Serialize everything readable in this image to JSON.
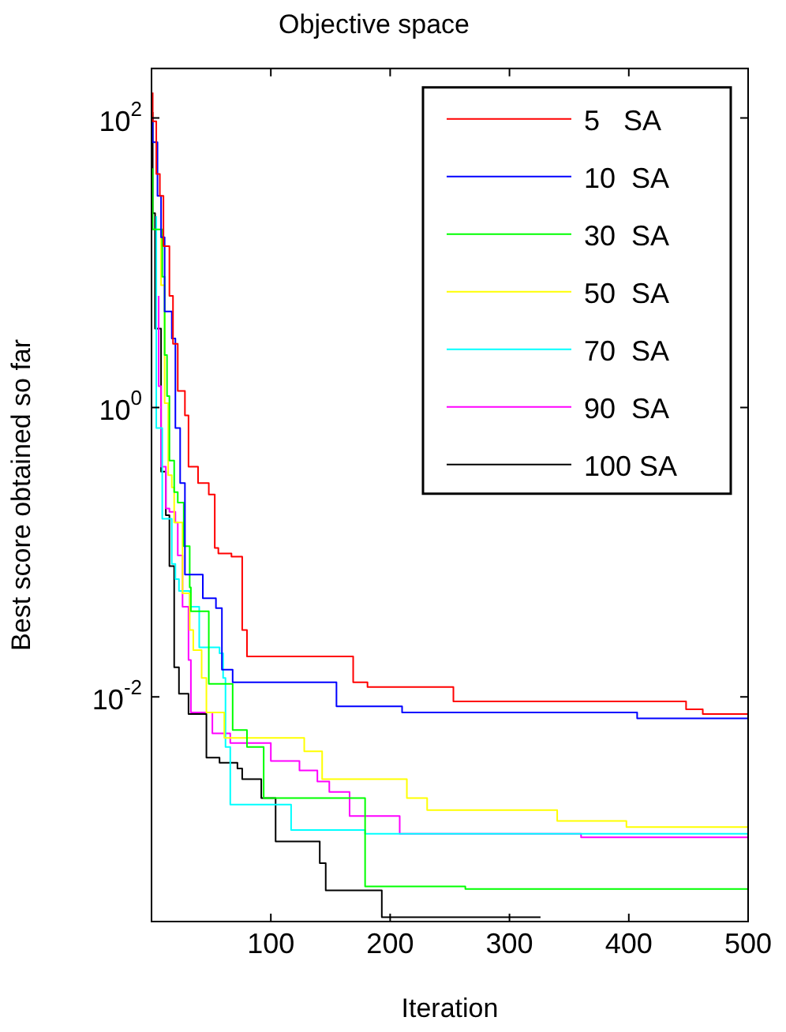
{
  "chart_data": {
    "type": "step",
    "title": "Objective space",
    "xlabel": "Iteration",
    "ylabel": "Best score obtained so far",
    "log": "y",
    "legend": "top right",
    "xlim": [
      0,
      500
    ],
    "xticks": [
      100,
      200,
      300,
      400,
      500
    ],
    "ylim": [
      0.00028,
      220
    ],
    "yticks": [
      {
        "value": 0.01,
        "label": "10$^{-2}$"
      },
      {
        "value": 1,
        "label": "10$^{0}$"
      },
      {
        "value": 100,
        "label": "10$^{2}$"
      }
    ],
    "series": [
      {
        "name": "5   SA",
        "color": "#ff0000",
        "x": [
          1,
          4,
          7,
          10,
          15,
          18,
          22,
          28,
          31,
          39,
          48,
          53,
          56,
          67,
          76,
          80,
          169,
          181,
          253,
          448,
          462,
          495,
          500
        ],
        "values": [
          150,
          95,
          41,
          29,
          13,
          5.9,
          2.75,
          1.3,
          0.88,
          0.39,
          0.3,
          0.25,
          0.107,
          0.098,
          0.093,
          0.029,
          0.019,
          0.0126,
          0.0117,
          0.0093,
          0.0082,
          0.0076,
          0.0076
        ]
      },
      {
        "name": "10  SA",
        "color": "#0000ff",
        "x": [
          1,
          5,
          8,
          11,
          17,
          20,
          24,
          28,
          43,
          54,
          59,
          68,
          155,
          210,
          407,
          471,
          500
        ],
        "values": [
          100,
          68,
          29,
          15,
          4.6,
          3,
          0.72,
          0.3,
          0.07,
          0.048,
          0.041,
          0.0154,
          0.0126,
          0.0086,
          0.0078,
          0.0071,
          0.0071
        ]
      },
      {
        "name": "30  SA",
        "color": "#00ff00",
        "x": [
          1,
          9,
          11,
          13,
          15,
          19,
          22,
          27,
          32,
          33,
          48,
          68,
          80,
          94,
          179,
          263,
          479,
          500
        ],
        "values": [
          45,
          17,
          8,
          2.3,
          1.2,
          0.43,
          0.26,
          0.22,
          0.11,
          0.057,
          0.039,
          0.0123,
          0.0059,
          0.0045,
          0.002,
          0.00049,
          0.00047,
          0.00047
        ]
      },
      {
        "name": "50  SA",
        "color": "#ffff00",
        "x": [
          8,
          11,
          14,
          17,
          19,
          26,
          32,
          35,
          42,
          46,
          61,
          128,
          143,
          214,
          231,
          340,
          398,
          441,
          500
        ],
        "values": [
          16,
          7,
          1.07,
          0.34,
          0.28,
          0.16,
          0.052,
          0.029,
          0.021,
          0.0135,
          0.0078,
          0.0052,
          0.0042,
          0.0027,
          0.002,
          0.00165,
          0.00139,
          0.00126,
          0.00126
        ]
      },
      {
        "name": "70  SA",
        "color": "#00ffff",
        "x": [
          4,
          9,
          17,
          20,
          23,
          32,
          40,
          57,
          60,
          62,
          66,
          117,
          179,
          444,
          500
        ],
        "values": [
          21,
          0.72,
          0.17,
          0.083,
          0.065,
          0.054,
          0.042,
          0.022,
          0.02,
          0.0135,
          0.0045,
          0.0018,
          0.0012,
          0.00113,
          0.00113
        ]
      },
      {
        "name": "90  SA",
        "color": "#ff00ff",
        "x": [
          6,
          8,
          12,
          15,
          20,
          22,
          26,
          31,
          33,
          51,
          66,
          100,
          124,
          139,
          149,
          166,
          208,
          360,
          371,
          500
        ],
        "values": [
          5.9,
          1.4,
          0.39,
          0.2,
          0.19,
          0.16,
          0.095,
          0.042,
          0.018,
          0.0078,
          0.0056,
          0.0048,
          0.0036,
          0.0031,
          0.0026,
          0.0022,
          0.0015,
          0.00113,
          0.00107,
          0.00107
        ]
      },
      {
        "name": "100 SA",
        "color": "#000000",
        "x": [
          1,
          3,
          8,
          12,
          15,
          19,
          23,
          31,
          46,
          57,
          72,
          76,
          92,
          104,
          141,
          146,
          193,
          241,
          326
        ],
        "values": [
          110,
          22,
          3.5,
          0.36,
          0.18,
          0.08,
          0.016,
          0.0105,
          0.0076,
          0.0038,
          0.0035,
          0.0032,
          0.0027,
          0.002,
          0.001,
          0.00071,
          0.00046,
          0.0003,
          0.0003
        ]
      }
    ]
  }
}
